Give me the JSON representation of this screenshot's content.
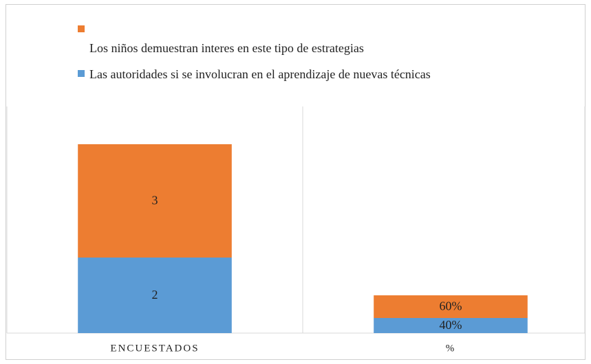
{
  "chart_data": {
    "type": "stacked_bar",
    "categories": [
      "ENCUESTADOS",
      "%"
    ],
    "series": [
      {
        "name": "Las autoridades si se involucran en el aprendizaje de nuevas técnicas",
        "color": "#5b9bd5",
        "values": [
          2,
          0.4
        ],
        "value_labels": [
          "2",
          "40%"
        ]
      },
      {
        "name": "Los niños demuestran interes en este tipo de estrategias",
        "color": "#ed7d31",
        "values": [
          3,
          0.6
        ],
        "value_labels": [
          "3",
          "60%"
        ]
      }
    ],
    "ylim": [
      0,
      6
    ]
  }
}
